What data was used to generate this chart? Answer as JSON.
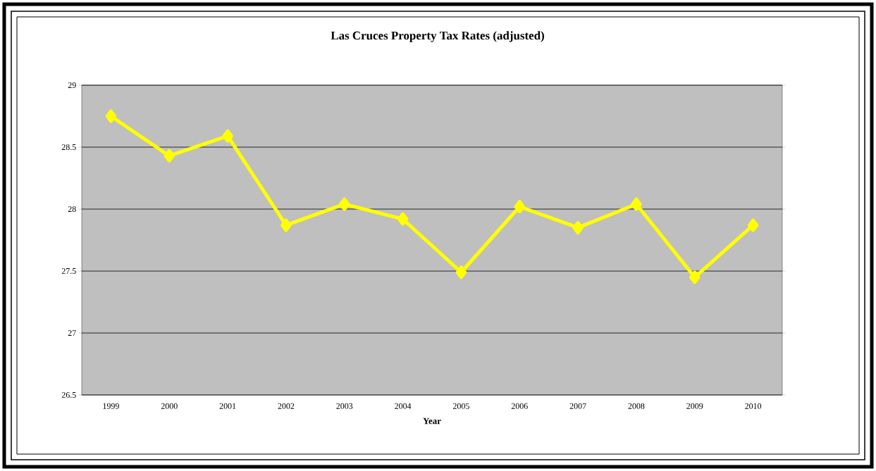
{
  "chart_data": {
    "type": "line",
    "title": "Las Cruces Property Tax Rates (adjusted)",
    "xlabel": "Year",
    "categories": [
      "1999",
      "2000",
      "2001",
      "2002",
      "2003",
      "2004",
      "2005",
      "2006",
      "2007",
      "2008",
      "2009",
      "2010"
    ],
    "series": [
      {
        "color": "#ffff00",
        "values": [
          28.75,
          28.43,
          28.59,
          27.87,
          28.04,
          27.92,
          27.49,
          28.02,
          27.85,
          28.04,
          27.45,
          27.87
        ]
      }
    ],
    "ylim": [
      26.5,
      29
    ],
    "yticks": [
      26.5,
      27,
      27.5,
      28,
      28.5,
      29
    ],
    "grid": "y",
    "marker": "diamond",
    "line_style": "solid"
  }
}
